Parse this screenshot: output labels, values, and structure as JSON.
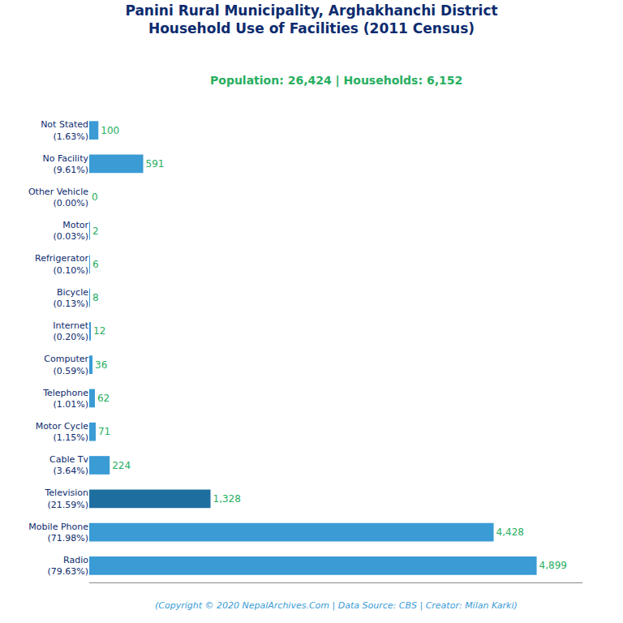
{
  "chart_data": {
    "type": "bar",
    "orientation": "horizontal",
    "title": "Panini Rural Municipality, Arghakhanchi District\nHousehold Use of Facilities (2011 Census)",
    "subtitle": "Population: 26,424 | Households: 6,152",
    "annotations": [
      "(Copyright © 2020 NepalArchives.Com | Data Source: CBS | Creator: Milan Karki)"
    ],
    "categories": [
      "Not Stated\n(1.63%)",
      "No Facility\n(9.61%)",
      "Other Vehicle\n(0.00%)",
      "Motor\n(0.03%)",
      "Refrigerator\n(0.10%)",
      "Bicycle\n(0.13%)",
      "Internet\n(0.20%)",
      "Computer\n(0.59%)",
      "Telephone\n(1.01%)",
      "Motor Cycle\n(1.15%)",
      "Cable Tv\n(3.64%)",
      "Television\n(21.59%)",
      "Mobile Phone\n(71.98%)",
      "Radio\n(79.63%)"
    ],
    "values": [
      100,
      591,
      0,
      2,
      6,
      8,
      12,
      36,
      62,
      71,
      224,
      1328,
      4428,
      4899
    ],
    "value_labels": [
      "100",
      "591",
      "0",
      "2",
      "6",
      "8",
      "12",
      "36",
      "62",
      "71",
      "224",
      "1,328",
      "4,428",
      "4,899"
    ],
    "data_labels": true,
    "colors": [
      "#3a9bd5",
      "#3a9bd5",
      "#3a9bd5",
      "#3a9bd5",
      "#3a9bd5",
      "#3a9bd5",
      "#3a9bd5",
      "#3a9bd5",
      "#3a9bd5",
      "#3a9bd5",
      "#3a9bd5",
      "#1e6fa0",
      "#3a9bd5",
      "#3a9bd5"
    ],
    "xlim": [
      0,
      5400
    ],
    "tick_labels": "y",
    "grid": false
  }
}
